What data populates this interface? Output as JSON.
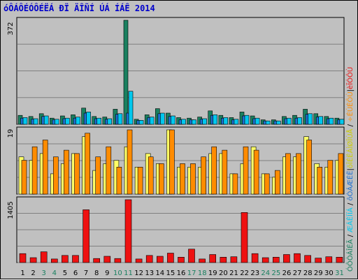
{
  "title": "óÔÁÔÉÓÔÉËÁ ÐÏ ÄÎÑÍ ÚÁ ÍÁÊ 2014",
  "chart_data": [
    {
      "type": "bar",
      "panel": "top",
      "max_label": "372",
      "categories": [
        "1",
        "2",
        "3",
        "4",
        "5",
        "6",
        "7",
        "8",
        "9",
        "10",
        "11",
        "12",
        "13",
        "14",
        "15",
        "16",
        "17",
        "18",
        "19",
        "20",
        "21",
        "22",
        "23",
        "24",
        "25",
        "26",
        "27",
        "28",
        "29",
        "30",
        "31"
      ],
      "weekend_days": [
        "3",
        "4",
        "10",
        "11",
        "17",
        "18",
        "24",
        "25",
        "31"
      ],
      "series": [
        {
          "name": "óÔÒÁÎÉÃ",
          "color": "#1a8060",
          "values": [
            32,
            28,
            38,
            22,
            30,
            34,
            58,
            28,
            26,
            54,
            372,
            18,
            34,
            56,
            40,
            24,
            22,
            26,
            48,
            32,
            24,
            44,
            30,
            16,
            16,
            28,
            32,
            54,
            38,
            28,
            22
          ]
        },
        {
          "name": "ôÒÁÆÉË",
          "color": "#1e6fd0",
          "values": [
            22,
            18,
            28,
            16,
            20,
            22,
            40,
            20,
            18,
            36,
            40,
            14,
            24,
            38,
            28,
            16,
            16,
            18,
            32,
            22,
            16,
            30,
            20,
            12,
            12,
            20,
            22,
            36,
            26,
            20,
            16
          ]
        },
        {
          "name": "ÆÁÊÌÏÁ",
          "color": "#00c8ee",
          "values": [
            24,
            20,
            30,
            18,
            22,
            26,
            44,
            22,
            20,
            38,
            118,
            14,
            26,
            40,
            30,
            18,
            16,
            20,
            34,
            24,
            18,
            32,
            22,
            12,
            12,
            22,
            24,
            38,
            28,
            22,
            18
          ]
        }
      ]
    },
    {
      "type": "bar",
      "panel": "middle",
      "max_label": "19",
      "categories": [
        "1",
        "2",
        "3",
        "4",
        "5",
        "6",
        "7",
        "8",
        "9",
        "10",
        "11",
        "12",
        "13",
        "14",
        "15",
        "16",
        "17",
        "18",
        "19",
        "20",
        "21",
        "22",
        "23",
        "24",
        "25",
        "26",
        "27",
        "28",
        "29",
        "30",
        "31"
      ],
      "series": [
        {
          "name": "õÎÉËÁÌØÎÙÅ",
          "color": "#ffff66",
          "values": [
            11,
            10,
            12,
            6,
            9,
            12,
            17,
            7,
            9,
            10,
            14,
            8,
            12,
            9,
            19,
            8,
            8,
            8,
            12,
            12,
            6,
            9,
            14,
            6,
            5,
            11,
            11,
            17,
            9,
            8,
            10
          ]
        },
        {
          "name": "÷ÉÚÉÔÙ",
          "color": "#ff8c00",
          "values": [
            10,
            14,
            16,
            11,
            13,
            12,
            18,
            11,
            14,
            8,
            19,
            8,
            11,
            9,
            19,
            9,
            9,
            11,
            14,
            13,
            6,
            14,
            13,
            6,
            7,
            12,
            12,
            16,
            8,
            10,
            12
          ]
        }
      ]
    },
    {
      "type": "bar",
      "panel": "bottom",
      "max_label": "1405",
      "categories": [
        "1",
        "2",
        "3",
        "4",
        "5",
        "6",
        "7",
        "8",
        "9",
        "10",
        "11",
        "12",
        "13",
        "14",
        "15",
        "16",
        "17",
        "18",
        "19",
        "20",
        "21",
        "22",
        "23",
        "24",
        "25",
        "26",
        "27",
        "28",
        "29",
        "30",
        "31"
      ],
      "series": [
        {
          "name": "èÏÓÔÙ",
          "color": "#ee1111",
          "values": [
            200,
            110,
            240,
            80,
            160,
            160,
            1180,
            90,
            140,
            90,
            1405,
            80,
            160,
            140,
            210,
            120,
            300,
            80,
            180,
            120,
            130,
            1120,
            200,
            110,
            120,
            180,
            200,
            160,
            100,
            130,
            120
          ]
        }
      ]
    }
  ],
  "legend_right": [
    {
      "text": "ÓÔÒÁÎÉÃ",
      "color": "#1a8060"
    },
    {
      "text": " / ",
      "color": "#000000"
    },
    {
      "text": "ÆÁÊÌÏÁ",
      "color": "#00c8ee"
    },
    {
      "text": " / ",
      "color": "#000000"
    },
    {
      "text": "ôÒÁÆÉË",
      "color": "#1e6fd0"
    },
    {
      "text": "|",
      "color": "#000000"
    },
    {
      "text": "õÎÉËÁÌØÎÙÅ",
      "color": "#cccc00"
    },
    {
      "text": " / ",
      "color": "#000000"
    },
    {
      "text": "÷ÉÚÉÔÙ",
      "color": "#ff8c00"
    },
    {
      "text": "|",
      "color": "#000000"
    },
    {
      "text": "èÏÓÔÙ",
      "color": "#ee1111"
    }
  ]
}
